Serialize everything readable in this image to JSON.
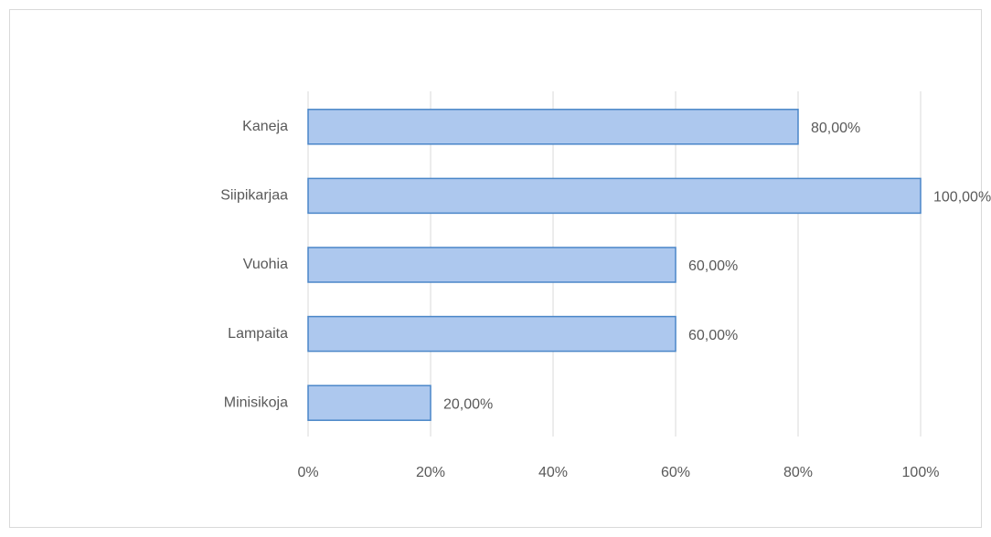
{
  "chart_data": {
    "type": "barh",
    "categories": [
      "Kaneja",
      "Siipikarjaa",
      "Vuohia",
      "Lampaita",
      "Minisikoja"
    ],
    "values": [
      80,
      100,
      60,
      60,
      20
    ],
    "value_labels": [
      "80,00%",
      "100,00%",
      "60,00%",
      "60,00%",
      "20,00%"
    ],
    "color": "#adc8ee",
    "edgecolor": "#4a86c8",
    "xlim": [
      0,
      100
    ],
    "xticks": [
      {
        "value": 0,
        "label": "0%"
      },
      {
        "value": 20,
        "label": "20%"
      },
      {
        "value": 40,
        "label": "40%"
      },
      {
        "value": 60,
        "label": "60%"
      },
      {
        "value": 80,
        "label": "80%"
      },
      {
        "value": 100,
        "label": "100%"
      }
    ],
    "grid": true
  }
}
